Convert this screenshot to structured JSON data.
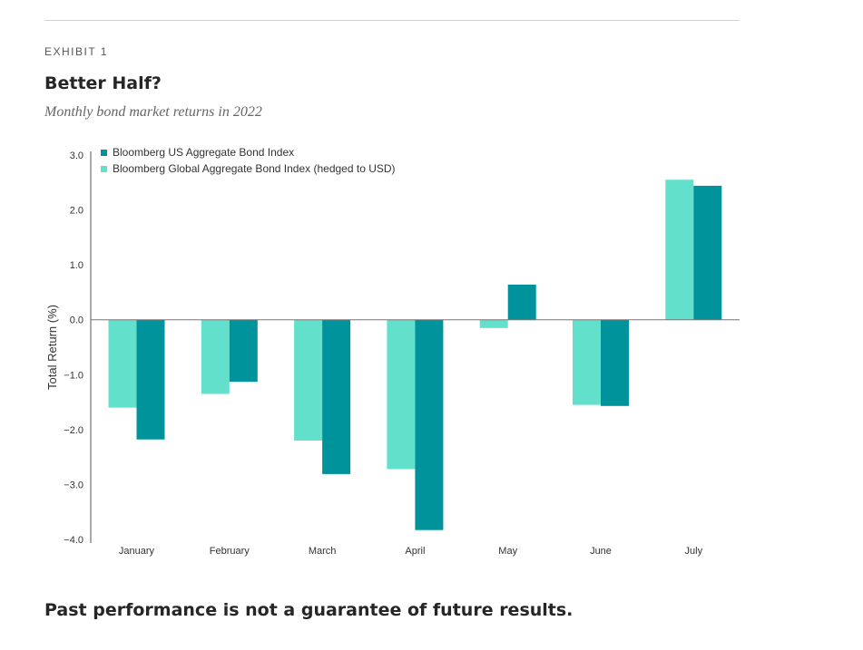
{
  "header": {
    "eyebrow": "EXHIBIT 1",
    "title": "Better Half?",
    "subtitle": "Monthly bond market returns in 2022"
  },
  "footnote": "Past performance is not a guarantee of future results.",
  "chart_data": {
    "type": "bar",
    "ylabel": "Total Return (%)",
    "xlabel": "",
    "ylim": [
      -4.0,
      3.0
    ],
    "yticks": [
      "3.0",
      "2.0",
      "1.0",
      "0.0",
      "−1.0",
      "−2.0",
      "−3.0",
      "−4.0"
    ],
    "ytick_values": [
      3,
      2,
      1,
      0,
      -1,
      -2,
      -3,
      -4
    ],
    "categories": [
      "January",
      "February",
      "March",
      "April",
      "May",
      "June",
      "July"
    ],
    "series": [
      {
        "name": "Bloomberg Global Aggregate Bond Index (hedged to USD)",
        "color": "#62e0cb",
        "values": [
          -1.6,
          -1.35,
          -2.2,
          -2.72,
          -0.15,
          -1.55,
          2.55
        ]
      },
      {
        "name": "Bloomberg US Aggregate Bond Index",
        "color": "#00939b",
        "values": [
          -2.18,
          -1.13,
          -2.81,
          -3.83,
          0.64,
          -1.57,
          2.44
        ]
      }
    ],
    "legend_order": [
      1,
      0
    ],
    "legend_position": "top-left",
    "grid": false
  }
}
